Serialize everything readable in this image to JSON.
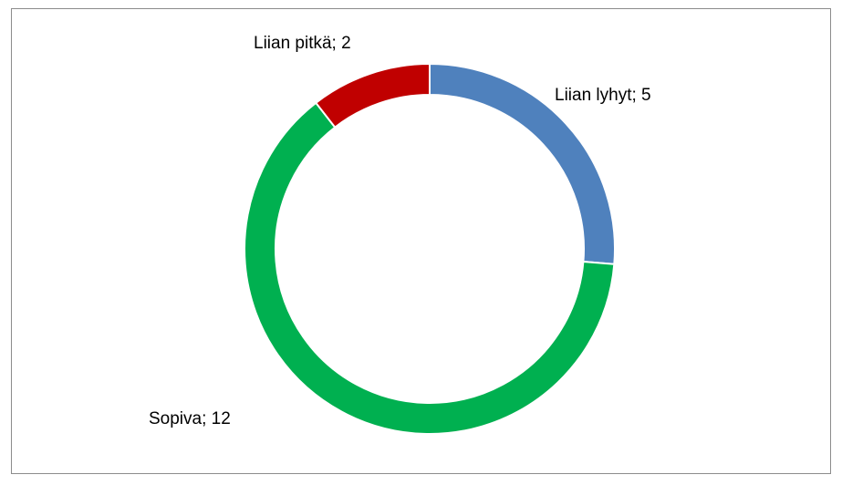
{
  "chart_data": {
    "type": "donut",
    "values": [
      5,
      12,
      2
    ],
    "value_labels": [
      "Liian lyhyt; 5",
      "Sopiva; 12",
      "Liian pitkä; 2"
    ],
    "colors": [
      "#4f81bd",
      "#00b050",
      "#c00000"
    ]
  }
}
